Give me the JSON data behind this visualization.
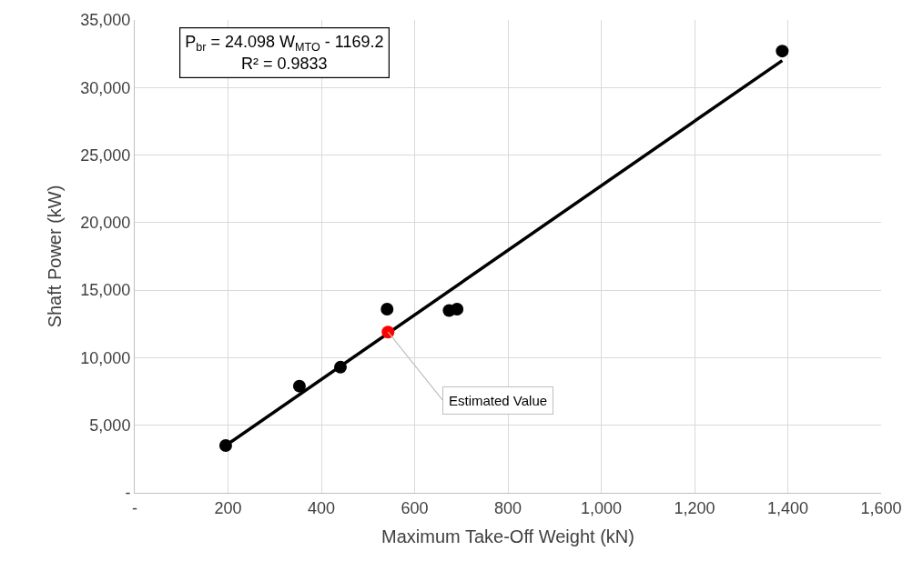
{
  "chart_data": {
    "type": "scatter",
    "xlabel": "Maximum Take-Off Weight (kN)",
    "ylabel": "Shaft Power (kW)",
    "series": [
      {
        "color": "#000000",
        "x": [
          195,
          353,
          441,
          541,
          674,
          691,
          1388
        ],
        "values": [
          3500,
          7900,
          9300,
          13600,
          13500,
          13600,
          32700
        ]
      },
      {
        "type": "line",
        "color": "#000000",
        "x": [
          195,
          1388
        ],
        "values": [
          3500,
          32000
        ],
        "marker": "none"
      },
      {
        "color": "#ff0000",
        "x": [
          543
        ],
        "values": [
          11900
        ]
      }
    ],
    "annotations": [
      "P$_{br}$ = 24.098 W$_{MTO}$ - 1169.2\nR² = 0.9833",
      {
        "text": "Estimated Value",
        "x": 543,
        "y": 11900
      }
    ],
    "xlim": [
      0,
      1600
    ],
    "xticks": [
      {
        "value": 0,
        "label": "-"
      },
      200,
      400,
      600,
      800,
      {
        "value": 1000,
        "label": "1,000"
      },
      {
        "value": 1200,
        "label": "1,200"
      },
      {
        "value": 1400,
        "label": "1,400"
      },
      {
        "value": 1600,
        "label": "1,600"
      }
    ],
    "ylim": [
      0,
      35000
    ],
    "yticks": [
      {
        "value": 0,
        "label": "-"
      },
      {
        "value": 5000,
        "label": "5,000"
      },
      {
        "value": 10000,
        "label": "10,000"
      },
      {
        "value": 15000,
        "label": "15,000"
      },
      {
        "value": 20000,
        "label": "20,000"
      },
      {
        "value": 25000,
        "label": "25,000"
      },
      {
        "value": 30000,
        "label": "30,000"
      },
      {
        "value": 35000,
        "label": "35,000"
      }
    ],
    "grid": true,
    "marker": "circle",
    "line_style": "solid"
  }
}
